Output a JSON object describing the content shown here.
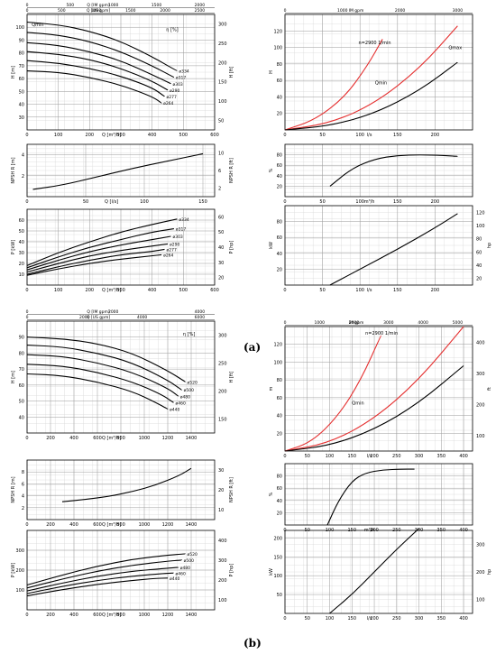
{
  "captions": {
    "a": "(a)",
    "b": "(b)"
  },
  "charts": [
    {
      "id": "a-head",
      "type": "line",
      "box": {},
      "xlim": [
        0,
        600
      ],
      "ylim": [
        20,
        110
      ],
      "xticks": [
        0,
        100,
        200,
        300,
        400,
        500,
        600
      ],
      "xlabel": "Q [m³/h]",
      "yticks": [
        30,
        40,
        50,
        60,
        70,
        80,
        90,
        100
      ],
      "ylabel": "H [m]",
      "top_axes": [
        {
          "label": "Q [US gpm]",
          "ticks": [
            "0",
            "500",
            "1000",
            "1500",
            "2000",
            "2500"
          ]
        },
        {
          "label": "Q [IM gpm]",
          "ticks": [
            "0",
            "500",
            "1000",
            "1500",
            "2000"
          ]
        }
      ],
      "right_axis": {
        "label": "H [ft]",
        "ticks": [
          "50",
          "100",
          "150",
          "200",
          "250",
          "300"
        ]
      },
      "labels": [
        {
          "text": "Qmin",
          "x": 15,
          "y": 101
        },
        {
          "text": "η [%]",
          "x": 445,
          "y": 97
        }
      ],
      "series": [
        {
          "name": "ø334",
          "x": [
            0,
            100,
            200,
            300,
            400,
            480
          ],
          "y": [
            104,
            102,
            97,
            89,
            77,
            66
          ],
          "color": "#000"
        },
        {
          "name": "ø317",
          "x": [
            0,
            100,
            200,
            300,
            400,
            470
          ],
          "y": [
            96,
            94,
            89,
            81,
            70,
            61
          ],
          "color": "#000"
        },
        {
          "name": "ø303",
          "x": [
            0,
            100,
            200,
            300,
            400,
            460
          ],
          "y": [
            88,
            86,
            81,
            74,
            63,
            56
          ],
          "color": "#000"
        },
        {
          "name": "ø290",
          "x": [
            0,
            100,
            200,
            300,
            400,
            450
          ],
          "y": [
            81,
            79,
            75,
            68,
            58,
            51
          ],
          "color": "#000"
        },
        {
          "name": "ø277",
          "x": [
            0,
            100,
            200,
            300,
            400,
            440
          ],
          "y": [
            74,
            72,
            68,
            62,
            53,
            46
          ],
          "color": "#000"
        },
        {
          "name": "ø264",
          "x": [
            0,
            100,
            200,
            300,
            400,
            430
          ],
          "y": [
            66,
            65,
            61,
            55,
            46,
            41
          ],
          "color": "#000"
        }
      ]
    },
    {
      "id": "a-npsh",
      "type": "line",
      "xlim": [
        0,
        160
      ],
      "ylim": [
        0,
        5
      ],
      "xticks": [
        0,
        50,
        100,
        150
      ],
      "xlabel": "Q [l/s]",
      "yticks": [
        2,
        4
      ],
      "ylabel": "NPSH R [m]",
      "right_axis": {
        "label": "NPSH R [ft]",
        "ticks": [
          "2",
          "6",
          "10"
        ]
      },
      "labels": [],
      "series": [
        {
          "name": "",
          "x": [
            5,
            30,
            60,
            90,
            120,
            150
          ],
          "y": [
            0.7,
            1.1,
            1.9,
            2.7,
            3.4,
            4.1
          ],
          "color": "#000"
        }
      ]
    },
    {
      "id": "a-power",
      "type": "line",
      "xlim": [
        0,
        600
      ],
      "ylim": [
        0,
        70
      ],
      "xticks": [
        0,
        100,
        200,
        300,
        400,
        500,
        600
      ],
      "xlabel": "Q [m³/h]",
      "yticks": [
        10,
        20,
        30,
        40,
        50,
        60
      ],
      "ylabel": "P [kW]",
      "right_axis": {
        "label": "P [hp]",
        "ticks": [
          "20",
          "30",
          "40",
          "50",
          "60"
        ]
      },
      "labels": [],
      "series": [
        {
          "name": "ø334",
          "x": [
            0,
            100,
            200,
            300,
            400,
            480
          ],
          "y": [
            18,
            30,
            40,
            49,
            56,
            61
          ],
          "color": "#000"
        },
        {
          "name": "ø317",
          "x": [
            0,
            100,
            200,
            300,
            400,
            470
          ],
          "y": [
            16,
            26,
            35,
            42,
            49,
            52
          ],
          "color": "#000"
        },
        {
          "name": "ø303",
          "x": [
            0,
            100,
            200,
            300,
            400,
            460
          ],
          "y": [
            14,
            23,
            31,
            37,
            42,
            45
          ],
          "color": "#000"
        },
        {
          "name": "ø290",
          "x": [
            0,
            100,
            200,
            300,
            400,
            450
          ],
          "y": [
            12,
            20,
            27,
            32,
            36,
            38
          ],
          "color": "#000"
        },
        {
          "name": "ø277",
          "x": [
            0,
            100,
            200,
            300,
            400,
            440
          ],
          "y": [
            10,
            17,
            23,
            28,
            31,
            33
          ],
          "color": "#000"
        },
        {
          "name": "ø264",
          "x": [
            0,
            100,
            200,
            300,
            400,
            430
          ],
          "y": [
            9,
            15,
            20,
            24,
            27,
            28
          ],
          "color": "#000"
        }
      ]
    },
    {
      "id": "a-sys",
      "type": "line",
      "xlim": [
        0,
        250
      ],
      "ylim": [
        0,
        140
      ],
      "xticks": [
        0,
        50,
        100,
        150,
        200
      ],
      "xlabel": "l/s",
      "yticks": [
        20,
        40,
        60,
        80,
        100,
        120
      ],
      "ylabel": "H",
      "top_axes": [
        {
          "label": "IM gpm",
          "ticks": [
            "0",
            "1000",
            "2000",
            "3000"
          ]
        }
      ],
      "labels": [
        {
          "text": "Qmin",
          "x": 120,
          "y": 55
        },
        {
          "text": "Qmax",
          "x": 218,
          "y": 98
        },
        {
          "text": "n=2900 1/min",
          "x": 98,
          "y": 104
        }
      ],
      "series": [
        {
          "name": "",
          "x": [
            0,
            40,
            80,
            110,
            130
          ],
          "y": [
            0,
            12,
            40,
            78,
            110
          ],
          "color": "#e53030"
        },
        {
          "name": "",
          "x": [
            0,
            60,
            120,
            180,
            230
          ],
          "y": [
            0,
            8,
            32,
            75,
            126
          ],
          "color": "#e53030"
        },
        {
          "name": "",
          "x": [
            0,
            60,
            120,
            180,
            230
          ],
          "y": [
            0,
            5,
            20,
            48,
            82
          ],
          "color": "#000"
        }
      ]
    },
    {
      "id": "a-eff",
      "type": "line",
      "xlim": [
        0,
        250
      ],
      "ylim": [
        0,
        100
      ],
      "xticks": [
        0,
        50,
        100,
        150,
        200
      ],
      "xlabel": "m³/h",
      "yticks": [
        20,
        40,
        60,
        80
      ],
      "ylabel": "%",
      "labels": [],
      "series": [
        {
          "name": "",
          "x": [
            60,
            90,
            120,
            150,
            180,
            210,
            230
          ],
          "y": [
            20,
            55,
            72,
            79,
            80,
            79,
            77
          ],
          "color": "#000"
        }
      ]
    },
    {
      "id": "a-kw",
      "type": "line",
      "xlim": [
        0,
        250
      ],
      "ylim": [
        0,
        100
      ],
      "xticks": [
        0,
        50,
        100,
        150,
        200
      ],
      "xlabel": "l/s",
      "yticks": [
        20,
        40,
        60,
        80
      ],
      "ylabel": "kW",
      "right_axis": {
        "label": "hp",
        "ticks": [
          "20",
          "40",
          "60",
          "80",
          "100",
          "120"
        ]
      },
      "labels": [],
      "series": [
        {
          "name": "",
          "x": [
            60,
            100,
            150,
            200,
            230
          ],
          "y": [
            0,
            20,
            45,
            72,
            90
          ],
          "color": "#000"
        }
      ]
    },
    {
      "id": "b-head",
      "type": "line",
      "xlim": [
        0,
        1600
      ],
      "ylim": [
        30,
        100
      ],
      "xticks": [
        0,
        200,
        400,
        600,
        800,
        1000,
        1200,
        1400
      ],
      "xlabel": "Q [m³/h]",
      "yticks": [
        40,
        50,
        60,
        70,
        80,
        90
      ],
      "ylabel": "H [m]",
      "top_axes": [
        {
          "label": "Q [US gpm]",
          "ticks": [
            "0",
            "2000",
            "4000",
            "6000"
          ]
        },
        {
          "label": "Q [IM gpm]",
          "ticks": [
            "0",
            "2000",
            "4000"
          ]
        }
      ],
      "right_axis": {
        "label": "H [ft]",
        "ticks": [
          "150",
          "200",
          "250",
          "300"
        ]
      },
      "labels": [
        {
          "text": "η [%]",
          "x": 1330,
          "y": 91
        }
      ],
      "series": [
        {
          "name": "ø520",
          "x": [
            0,
            300,
            600,
            900,
            1200,
            1350
          ],
          "y": [
            90,
            89,
            86,
            80,
            69,
            62
          ],
          "color": "#000"
        },
        {
          "name": "ø500",
          "x": [
            0,
            300,
            600,
            900,
            1200,
            1320
          ],
          "y": [
            85,
            84,
            80,
            74,
            63,
            57
          ],
          "color": "#000"
        },
        {
          "name": "ø480",
          "x": [
            0,
            300,
            600,
            900,
            1200,
            1290
          ],
          "y": [
            79,
            78,
            74,
            68,
            58,
            53
          ],
          "color": "#000"
        },
        {
          "name": "ø460",
          "x": [
            0,
            300,
            600,
            900,
            1150,
            1250
          ],
          "y": [
            73,
            72,
            68,
            62,
            54,
            49
          ],
          "color": "#000"
        },
        {
          "name": "ø440",
          "x": [
            0,
            300,
            600,
            900,
            1100,
            1200
          ],
          "y": [
            67,
            66,
            62,
            56,
            49,
            45
          ],
          "color": "#000"
        }
      ]
    },
    {
      "id": "b-npsh",
      "type": "line",
      "xlim": [
        0,
        1600
      ],
      "ylim": [
        0,
        10
      ],
      "xticks": [
        0,
        200,
        400,
        600,
        800,
        1000,
        1200,
        1400
      ],
      "xlabel": "Q [m³/h]",
      "yticks": [
        2,
        4,
        6,
        8
      ],
      "ylabel": "NPSH R [m]",
      "right_axis": {
        "label": "NPSH R [ft]",
        "ticks": [
          "10",
          "20",
          "30"
        ]
      },
      "labels": [],
      "series": [
        {
          "name": "",
          "x": [
            300,
            500,
            700,
            900,
            1100,
            1300,
            1400
          ],
          "y": [
            3.0,
            3.4,
            3.9,
            4.7,
            5.8,
            7.4,
            8.6
          ],
          "color": "#000"
        }
      ]
    },
    {
      "id": "b-power",
      "type": "line",
      "xlim": [
        0,
        1600
      ],
      "ylim": [
        0,
        400
      ],
      "xticks": [
        0,
        200,
        400,
        600,
        800,
        1000,
        1200,
        1400
      ],
      "xlabel": "Q [m³/h]",
      "yticks": [
        100,
        200,
        300
      ],
      "ylabel": "P [kW]",
      "right_axis": {
        "label": "P [hp]",
        "ticks": [
          "100",
          "200",
          "300",
          "400"
        ]
      },
      "labels": [],
      "series": [
        {
          "name": "ø520",
          "x": [
            0,
            300,
            600,
            900,
            1200,
            1350
          ],
          "y": [
            125,
            175,
            220,
            255,
            275,
            282
          ],
          "color": "#000"
        },
        {
          "name": "ø500",
          "x": [
            0,
            300,
            600,
            900,
            1200,
            1320
          ],
          "y": [
            110,
            155,
            195,
            225,
            245,
            250
          ],
          "color": "#000"
        },
        {
          "name": "ø480",
          "x": [
            0,
            300,
            600,
            900,
            1200,
            1290
          ],
          "y": [
            95,
            135,
            170,
            195,
            210,
            214
          ],
          "color": "#000"
        },
        {
          "name": "ø460",
          "x": [
            0,
            300,
            600,
            900,
            1150,
            1250
          ],
          "y": [
            82,
            118,
            148,
            170,
            182,
            185
          ],
          "color": "#000"
        },
        {
          "name": "ø440",
          "x": [
            0,
            300,
            600,
            900,
            1100,
            1200
          ],
          "y": [
            70,
            102,
            128,
            148,
            158,
            160
          ],
          "color": "#000"
        }
      ]
    },
    {
      "id": "b-sys",
      "type": "line",
      "xlim": [
        0,
        420
      ],
      "ylim": [
        0,
        140
      ],
      "xticks": [
        0,
        50,
        100,
        150,
        200,
        250,
        300,
        350,
        400
      ],
      "xlabel": "l/s",
      "yticks": [
        20,
        40,
        60,
        80,
        100,
        120
      ],
      "ylabel": "m",
      "top_axes": [
        {
          "label": "IM gpm",
          "ticks": [
            "0",
            "1000",
            "2000",
            "3000",
            "4000",
            "5000"
          ]
        }
      ],
      "right_axis": {
        "label": "ft",
        "ticks": [
          "100",
          "200",
          "300",
          "400"
        ]
      },
      "labels": [
        {
          "text": "Qmin",
          "x": 150,
          "y": 52
        },
        {
          "text": "n=2900 1/min",
          "x": 180,
          "y": 131
        }
      ],
      "series": [
        {
          "name": "",
          "x": [
            0,
            60,
            120,
            170,
            215
          ],
          "y": [
            0,
            10,
            40,
            80,
            130
          ],
          "color": "#e53030"
        },
        {
          "name": "",
          "x": [
            0,
            100,
            200,
            300,
            400
          ],
          "y": [
            0,
            9,
            36,
            80,
            140
          ],
          "color": "#e53030"
        },
        {
          "name": "",
          "x": [
            0,
            100,
            200,
            300,
            400
          ],
          "y": [
            0,
            6,
            24,
            54,
            96
          ],
          "color": "#000"
        }
      ]
    },
    {
      "id": "b-eff",
      "type": "line",
      "xlim": [
        0,
        420
      ],
      "ylim": [
        0,
        100
      ],
      "xticks": [
        0,
        50,
        100,
        150,
        200,
        250,
        300,
        350,
        400
      ],
      "xlabel": "m³/h",
      "yticks": [
        20,
        40,
        60,
        80
      ],
      "ylabel": "%",
      "labels": [],
      "series": [
        {
          "name": "",
          "x": [
            95,
            120,
            150,
            180,
            220,
            260,
            290
          ],
          "y": [
            0,
            40,
            72,
            85,
            90,
            91,
            91
          ],
          "color": "#000"
        }
      ]
    },
    {
      "id": "b-kw",
      "type": "line",
      "xlim": [
        0,
        420
      ],
      "ylim": [
        0,
        220
      ],
      "xticks": [
        0,
        50,
        100,
        150,
        200,
        250,
        300,
        350,
        400
      ],
      "xlabel": "l/s",
      "yticks": [
        50,
        100,
        150,
        200
      ],
      "ylabel": "kW",
      "right_axis": {
        "label": "hp",
        "ticks": [
          "100",
          "200",
          "300"
        ]
      },
      "labels": [],
      "series": [
        {
          "name": "",
          "x": [
            100,
            150,
            200,
            250,
            300
          ],
          "y": [
            0,
            50,
            110,
            170,
            225
          ],
          "color": "#000"
        }
      ]
    }
  ]
}
